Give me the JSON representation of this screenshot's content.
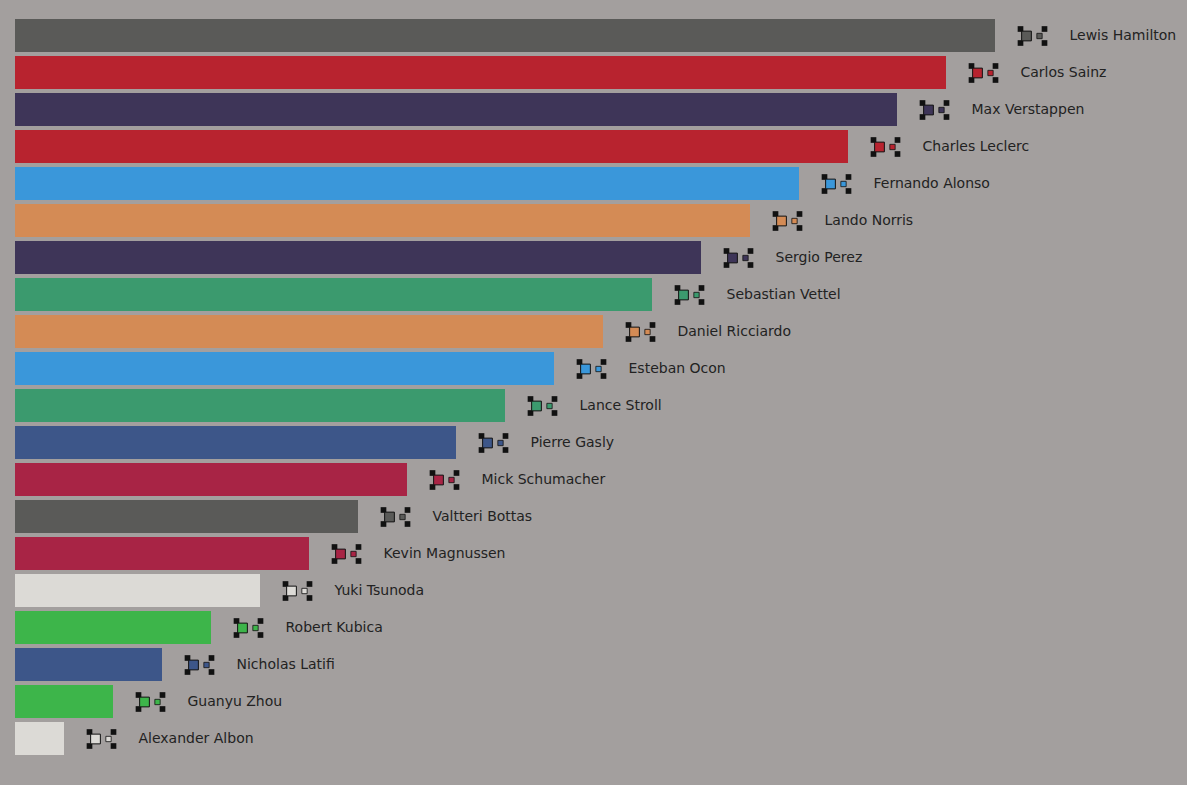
{
  "chart_data": {
    "type": "bar",
    "orientation": "horizontal",
    "categories": [
      "Lewis Hamilton",
      "Carlos Sainz",
      "Max Verstappen",
      "Charles Leclerc",
      "Fernando Alonso",
      "Lando Norris",
      "Sergio Perez",
      "Sebastian Vettel",
      "Daniel Ricciardo",
      "Esteban Ocon",
      "Lance Stroll",
      "Pierre Gasly",
      "Mick Schumacher",
      "Valtteri Bottas",
      "Kevin Magnussen",
      "Yuki Tsunoda",
      "Robert Kubica",
      "Nicholas Latifi",
      "Guanyu Zhou",
      "Alexander Albon"
    ],
    "values": [
      20,
      19,
      18,
      17,
      16,
      15,
      14,
      13,
      12,
      11,
      10,
      9,
      8,
      7,
      6,
      5,
      4,
      3,
      2,
      1
    ],
    "colors": [
      "#5a5a58",
      "#b8232f",
      "#3e3558",
      "#b8232f",
      "#3a97da",
      "#d48b55",
      "#3e3558",
      "#3b9a6e",
      "#d48b55",
      "#3a97da",
      "#3b9a6e",
      "#3d5689",
      "#a82445",
      "#5a5a58",
      "#a82445",
      "#dcdad6",
      "#3db54a",
      "#3d5689",
      "#3db54a",
      "#dcdad6"
    ],
    "xlim": [
      0,
      20
    ],
    "tick_labels": false,
    "data_labels": false
  }
}
